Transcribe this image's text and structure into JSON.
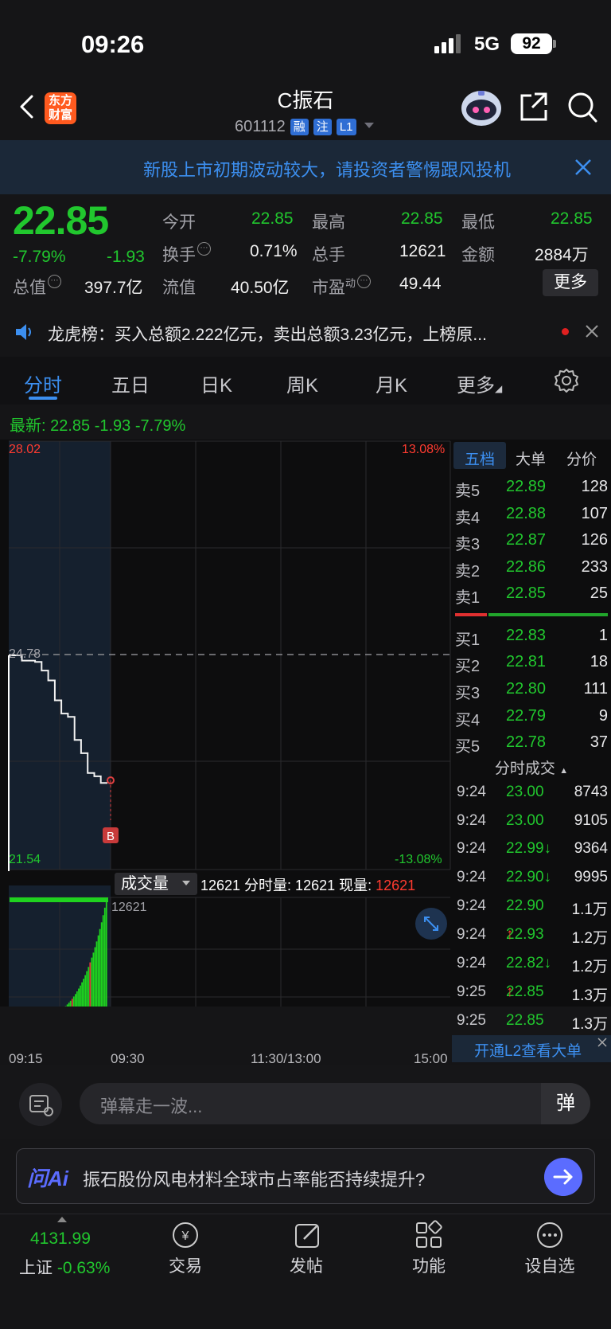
{
  "status_bar": {
    "time": "09:26",
    "network": "5G",
    "battery": "92"
  },
  "header": {
    "logo": "东方\n财富",
    "title": "C振石",
    "code": "601112",
    "tags": [
      "融",
      "注",
      "L1"
    ]
  },
  "notice": {
    "text": "新股上市初期波动较大，请投资者警惕跟风投机"
  },
  "quote": {
    "price": "22.85",
    "change_pct": "-7.79%",
    "change": "-1.93",
    "open_label": "今开",
    "open": "22.85",
    "high_label": "最高",
    "high": "22.85",
    "low_label": "最低",
    "low": "22.85",
    "turnover_label": "换手",
    "turnover": "0.71%",
    "volume_label": "总手",
    "volume": "12621",
    "amount_label": "金额",
    "amount": "2884万",
    "total_cap_label": "总值",
    "total_cap": "397.7亿",
    "float_cap_label": "流值",
    "float_cap": "40.50亿",
    "pe_label": "市盈",
    "pe_sup": "动",
    "pe": "49.44",
    "more": "更多"
  },
  "dragon_tiger": {
    "text": "龙虎榜：买入总额2.222亿元，卖出总额3.23亿元，上榜原..."
  },
  "tabs": [
    "分时",
    "五日",
    "日K",
    "周K",
    "月K",
    "更多"
  ],
  "latest": "最新: 22.85  -1.93  -7.79%",
  "chart": {
    "top_price": "28.02",
    "top_pct": "13.08%",
    "mid_price": "24.78",
    "bottom_price": "21.54",
    "bottom_pct": "-13.08%",
    "marker": "B",
    "vol_selector": "成交量",
    "vol_line_a": "12621 分时量: 12621 现量: ",
    "vol_line_b": "12621",
    "vol_max": "12621",
    "time_labels": [
      "09:15",
      "09:30",
      "11:30/13:00",
      "15:00"
    ]
  },
  "chart_data": {
    "type": "line",
    "title": "",
    "x_labels": [
      "09:15",
      "09:30",
      "11:30/13:00",
      "15:00"
    ],
    "ylim": [
      21.54,
      28.02
    ],
    "prev_close": 24.78,
    "series": [
      {
        "values": [
          24.78,
          24.78,
          24.7,
          24.7,
          24.68,
          24.55,
          24.4,
          24.1,
          23.9,
          23.85,
          23.5,
          23.3,
          23.0,
          22.95,
          22.85,
          22.85
        ]
      }
    ]
  },
  "order_book": {
    "tabs": [
      "五档",
      "大单",
      "分价"
    ],
    "asks": [
      {
        "label": "卖5",
        "price": "22.89",
        "vol": "128"
      },
      {
        "label": "卖4",
        "price": "22.88",
        "vol": "107"
      },
      {
        "label": "卖3",
        "price": "22.87",
        "vol": "126"
      },
      {
        "label": "卖2",
        "price": "22.86",
        "vol": "233"
      },
      {
        "label": "卖1",
        "price": "22.85",
        "vol": "25"
      }
    ],
    "bids": [
      {
        "label": "买1",
        "price": "22.83",
        "vol": "1"
      },
      {
        "label": "买2",
        "price": "22.81",
        "vol": "18"
      },
      {
        "label": "买3",
        "price": "22.80",
        "vol": "111"
      },
      {
        "label": "买4",
        "price": "22.79",
        "vol": "9"
      },
      {
        "label": "买5",
        "price": "22.78",
        "vol": "37"
      }
    ],
    "trades_title": "分时成交",
    "trades": [
      {
        "time": "9:24",
        "price": "23.00",
        "vol": "8743"
      },
      {
        "time": "9:24",
        "price": "23.00",
        "vol": "9105"
      },
      {
        "time": "9:24",
        "price": "22.99↓",
        "vol": "9364"
      },
      {
        "time": "9:24",
        "price": "22.90↓",
        "vol": "9995"
      },
      {
        "time": "9:24",
        "price": "22.90",
        "vol": "1.1万"
      },
      {
        "time": "9:24",
        "price": "22.93",
        "arrow": "↑",
        "vol": "1.2万"
      },
      {
        "time": "9:24",
        "price": "22.82↓",
        "vol": "1.2万"
      },
      {
        "time": "9:25",
        "price": "22.85",
        "arrow": "↑",
        "vol": "1.3万"
      },
      {
        "time": "9:25",
        "price": "22.85",
        "vol": "1.3万"
      }
    ],
    "l2": "开通L2查看大单"
  },
  "comment": {
    "placeholder": "弹幕走一波...",
    "dan": "弹"
  },
  "ai": {
    "logo": "问Ai",
    "question": "振石股份风电材料全球市占率能否持续提升?"
  },
  "bottom_nav": {
    "index_value": "4131.99",
    "index_name": "上证",
    "index_pct": "-0.63%",
    "items": [
      "交易",
      "发帖",
      "功能",
      "设自选"
    ]
  }
}
